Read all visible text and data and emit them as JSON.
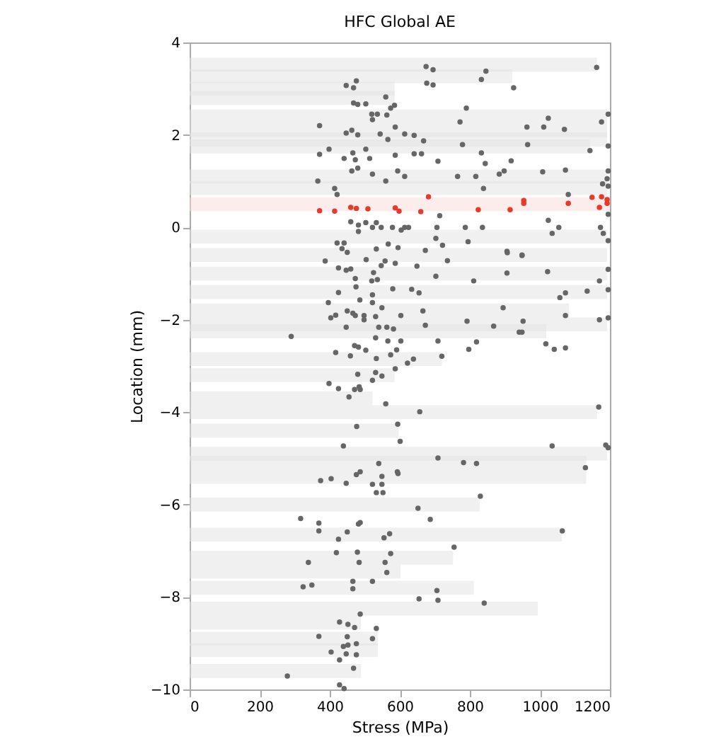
{
  "chart_data": {
    "type": "bar",
    "orientation": "horizontal",
    "title": "HFC Global AE",
    "xlabel": "Stress (MPa)",
    "ylabel": "Location (mm)",
    "xlim": [
      0,
      1200
    ],
    "xticks": [
      0,
      200,
      400,
      600,
      800,
      1000,
      1200
    ],
    "ylim": [
      -10,
      4
    ],
    "yticks": [
      -10,
      -8,
      -6,
      -4,
      -2,
      0,
      2,
      4
    ],
    "grid": false,
    "marker": "circle",
    "series": [
      {
        "color": "#e2e2e2",
        "x": [
          3.52,
          3.27,
          3.0,
          2.8,
          2.4,
          2.1,
          1.9,
          1.75,
          1.1,
          0.85,
          -0.2,
          -0.6,
          -1.0,
          -1.4,
          -1.8,
          -2.1,
          -2.25,
          -2.85,
          -3.2,
          -3.7,
          -4.0,
          -4.4,
          -4.9,
          -5.1,
          -5.4,
          -6.0,
          -6.65,
          -7.15,
          -7.45,
          -7.8,
          -8.25,
          -8.55,
          -8.9,
          -9.15,
          -9.6
        ],
        "values": [
          1163,
          921,
          585,
          585,
          1192,
          1192,
          1192,
          1143,
          1192,
          1192,
          1192,
          1192,
          1192,
          1192,
          1083,
          1192,
          1018,
          720,
          585,
          522,
          1163,
          597,
          1192,
          1132,
          1132,
          828,
          1063,
          752,
          602,
          811,
          994,
          489,
          537,
          537,
          489
        ]
      },
      {
        "color": "#f9d9d9",
        "x": [
          0.5
        ],
        "values": [
          1200
        ]
      },
      {
        "type": "scatter",
        "color": "#666666",
        "values": [
          371,
          371,
          366,
          398,
          414,
          421,
          447,
          468,
          476,
          447,
          463,
          480,
          468,
          480,
          503,
          520,
          536,
          522,
          560,
          574,
          585,
          563,
          544,
          566,
          587,
          614,
          641,
          466,
          473,
          441,
          463,
          480,
          503,
          514,
          522,
          560,
          587,
          594,
          614,
          641,
          662,
          668,
          709,
          675,
          695,
          677,
          695,
          790,
          772,
          779,
          765,
          817,
          833,
          844,
          839,
          833,
          846,
          925,
          884,
          898,
          918,
          963,
          965,
          1008,
          1011,
          1024,
          1070,
          1073,
          1081,
          1162,
          1143,
          1176,
          1195,
          1195,
          1179,
          1195,
          1192,
          1195,
          460,
          482,
          482,
          503,
          522,
          533,
          547,
          579,
          604,
          614,
          625,
          706,
          714,
          703,
          722,
          787,
          795,
          836,
          1024,
          1035,
          1054,
          1173,
          1181,
          1195,
          1195,
          421,
          441,
          435,
          450,
          533,
          567,
          595,
          673,
          906,
          949,
          387,
          425,
          447,
          460,
          504,
          547,
          558,
          587,
          649,
          736,
          907,
          949,
          906,
          1022,
          1170,
          1195,
          1195,
          473,
          520,
          536,
          475,
          525,
          703,
          811,
          580,
          634,
          655,
          425,
          522,
          486,
          522,
          396,
          549,
          450,
          466,
          473,
          403,
          417,
          498,
          498,
          531,
          666,
          603,
          540,
          563,
          582,
          447,
          290,
          531,
          566,
          603,
          673,
          709,
          792,
          868,
          895,
          952,
          949,
          941,
          1017,
          1041,
          1073,
          1073,
          1057,
          1073,
          1135,
          1170,
          1195,
          471,
          482,
          503,
          417,
          459,
          533,
          574,
          591,
          622,
          639,
          720,
          797,
          819,
          587,
          480,
          531,
          549,
          522,
          398,
          425,
          471,
          484,
          487,
          455,
          560,
          657,
          1168,
          477,
          594,
          601,
          439,
          1035,
          1188,
          1195,
          540,
          709,
          782,
          819,
          487,
          593,
          1130,
          595,
          476,
          549,
          447,
          404,
          374,
          522,
          549,
          533,
          552,
          830,
          652,
          317,
          369,
          369,
          487,
          482,
          450,
          571,
          555,
          425,
          687,
          1064,
          755,
          419,
          479,
          574,
          339,
          484,
          558,
          563,
          522,
          466,
          466,
          349,
          324,
          706,
          709,
          655,
          841,
          487,
          428,
          452,
          471,
          533,
          369,
          450,
          522,
          476,
          452,
          439,
          404,
          447,
          476,
          428,
          468,
          279,
          428,
          441
        ],
        "x": [
          2.2,
          1.58,
          1.0,
          1.69,
          0.84,
          0.71,
          3.07,
          3.02,
          3.17,
          2.04,
          2.1,
          2.0,
          2.69,
          2.66,
          2.67,
          2.45,
          2.45,
          2.33,
          2.82,
          2.58,
          2.64,
          2.43,
          2.02,
          1.9,
          2.17,
          2.02,
          1.99,
          1.61,
          1.46,
          1.49,
          1.22,
          1.28,
          1.69,
          1.49,
          1.15,
          1.0,
          1.56,
          1.22,
          1.1,
          1.59,
          1.59,
          1.87,
          1.43,
          3.48,
          3.41,
          3.12,
          3.08,
          2.58,
          2.28,
          1.79,
          1.1,
          1.1,
          1.61,
          1.38,
          0.84,
          3.2,
          3.38,
          3.02,
          1.15,
          1.22,
          1.44,
          2.17,
          1.79,
          1.2,
          2.17,
          2.36,
          2.12,
          1.24,
          0.71,
          3.46,
          1.66,
          2.28,
          2.45,
          1.76,
          0.94,
          1.22,
          1.05,
          0.89,
          0.12,
          0.05,
          -0.09,
          0.1,
          0,
          0.1,
          0,
          0,
          -0.06,
          0,
          0,
          0,
          0.25,
          -0.24,
          -0.39,
          0,
          -0.31,
          0,
          0.15,
          -0.13,
          0,
          0,
          -0.13,
          0.28,
          -0.29,
          -0.34,
          -0.34,
          -0.46,
          -0.54,
          -0.47,
          -0.36,
          -0.44,
          -0.5,
          -0.52,
          -0.6,
          -0.73,
          -0.88,
          -0.93,
          -0.9,
          -0.7,
          -0.83,
          -0.73,
          -0.78,
          -0.84,
          -0.72,
          -0.55,
          -0.61,
          -0.99,
          -0.96,
          -1.16,
          -0.91,
          -1.35,
          -1.11,
          -1.16,
          -1.13,
          -1.29,
          -0.98,
          -1.06,
          -1.16,
          -1.33,
          -1.34,
          -1.42,
          -1.41,
          -1.46,
          -1.57,
          -1.63,
          -1.63,
          -1.74,
          -1.81,
          -1.86,
          -1.91,
          -1.96,
          -1.9,
          -1.91,
          -2,
          -1.93,
          -1.81,
          -1.91,
          -2.16,
          -2.16,
          -2.2,
          -2.16,
          -2.36,
          -2.39,
          -2.46,
          -2.46,
          -2.12,
          -2.46,
          -2.03,
          -2.14,
          -1.74,
          -2.03,
          -2.27,
          -2.27,
          -2.52,
          -2.64,
          -2.61,
          -1.91,
          -1.52,
          -1.42,
          -1.38,
          -2,
          -1.96,
          -2.56,
          -2.59,
          -2.66,
          -2.71,
          -2.78,
          -2.84,
          -2.76,
          -2.65,
          -2.94,
          -2.85,
          -2.79,
          -2.64,
          -2.48,
          -3.06,
          -3.18,
          -3.14,
          -3.22,
          -3.31,
          -3.38,
          -3.49,
          -3.51,
          -3.45,
          -3.51,
          -3.67,
          -3.82,
          -3.99,
          -3.89,
          -4.31,
          -4.26,
          -4.63,
          -4.73,
          -4.73,
          -4.71,
          -4.77,
          -5.11,
          -4.99,
          -5.09,
          -5.11,
          -5.29,
          -5.29,
          -5.2,
          -5.33,
          -5.35,
          -5.39,
          -5.54,
          -5.44,
          -5.48,
          -5.56,
          -5.56,
          -5.74,
          -5.74,
          -5.82,
          -6.08,
          -6.3,
          -6.4,
          -6.57,
          -6.39,
          -6.42,
          -6.59,
          -6.63,
          -6.72,
          -6.75,
          -6.32,
          -6.57,
          -6.92,
          -7.04,
          -7.03,
          -7.06,
          -7.25,
          -7.25,
          -7.25,
          -7.47,
          -7.66,
          -7.66,
          -7.82,
          -7.74,
          -7.78,
          -7.86,
          -8.07,
          -8.04,
          -8.13,
          -8.37,
          -8.54,
          -8.59,
          -8.66,
          -8.68,
          -8.85,
          -8.86,
          -8.9,
          -9.01,
          -9.04,
          -9.07,
          -9.19,
          -9.23,
          -9.25,
          -9.36,
          -9.54,
          -9.71,
          -9.9,
          -9.98
        ]
      },
      {
        "type": "scatter",
        "color": "#e8392b",
        "values": [
          371,
          414,
          460,
          476,
          509,
          587,
          598,
          660,
          682,
          824,
          915,
          954,
          954,
          1081,
          1149,
          1170,
          1176,
          1192,
          1192
        ],
        "x": [
          0.36,
          0.35,
          0.43,
          0.41,
          0.4,
          0.42,
          0.35,
          0.34,
          0.66,
          0.38,
          0.38,
          0.58,
          0.52,
          0.52,
          0.65,
          0.43,
          0.66,
          0.52,
          0.6
        ]
      }
    ]
  }
}
